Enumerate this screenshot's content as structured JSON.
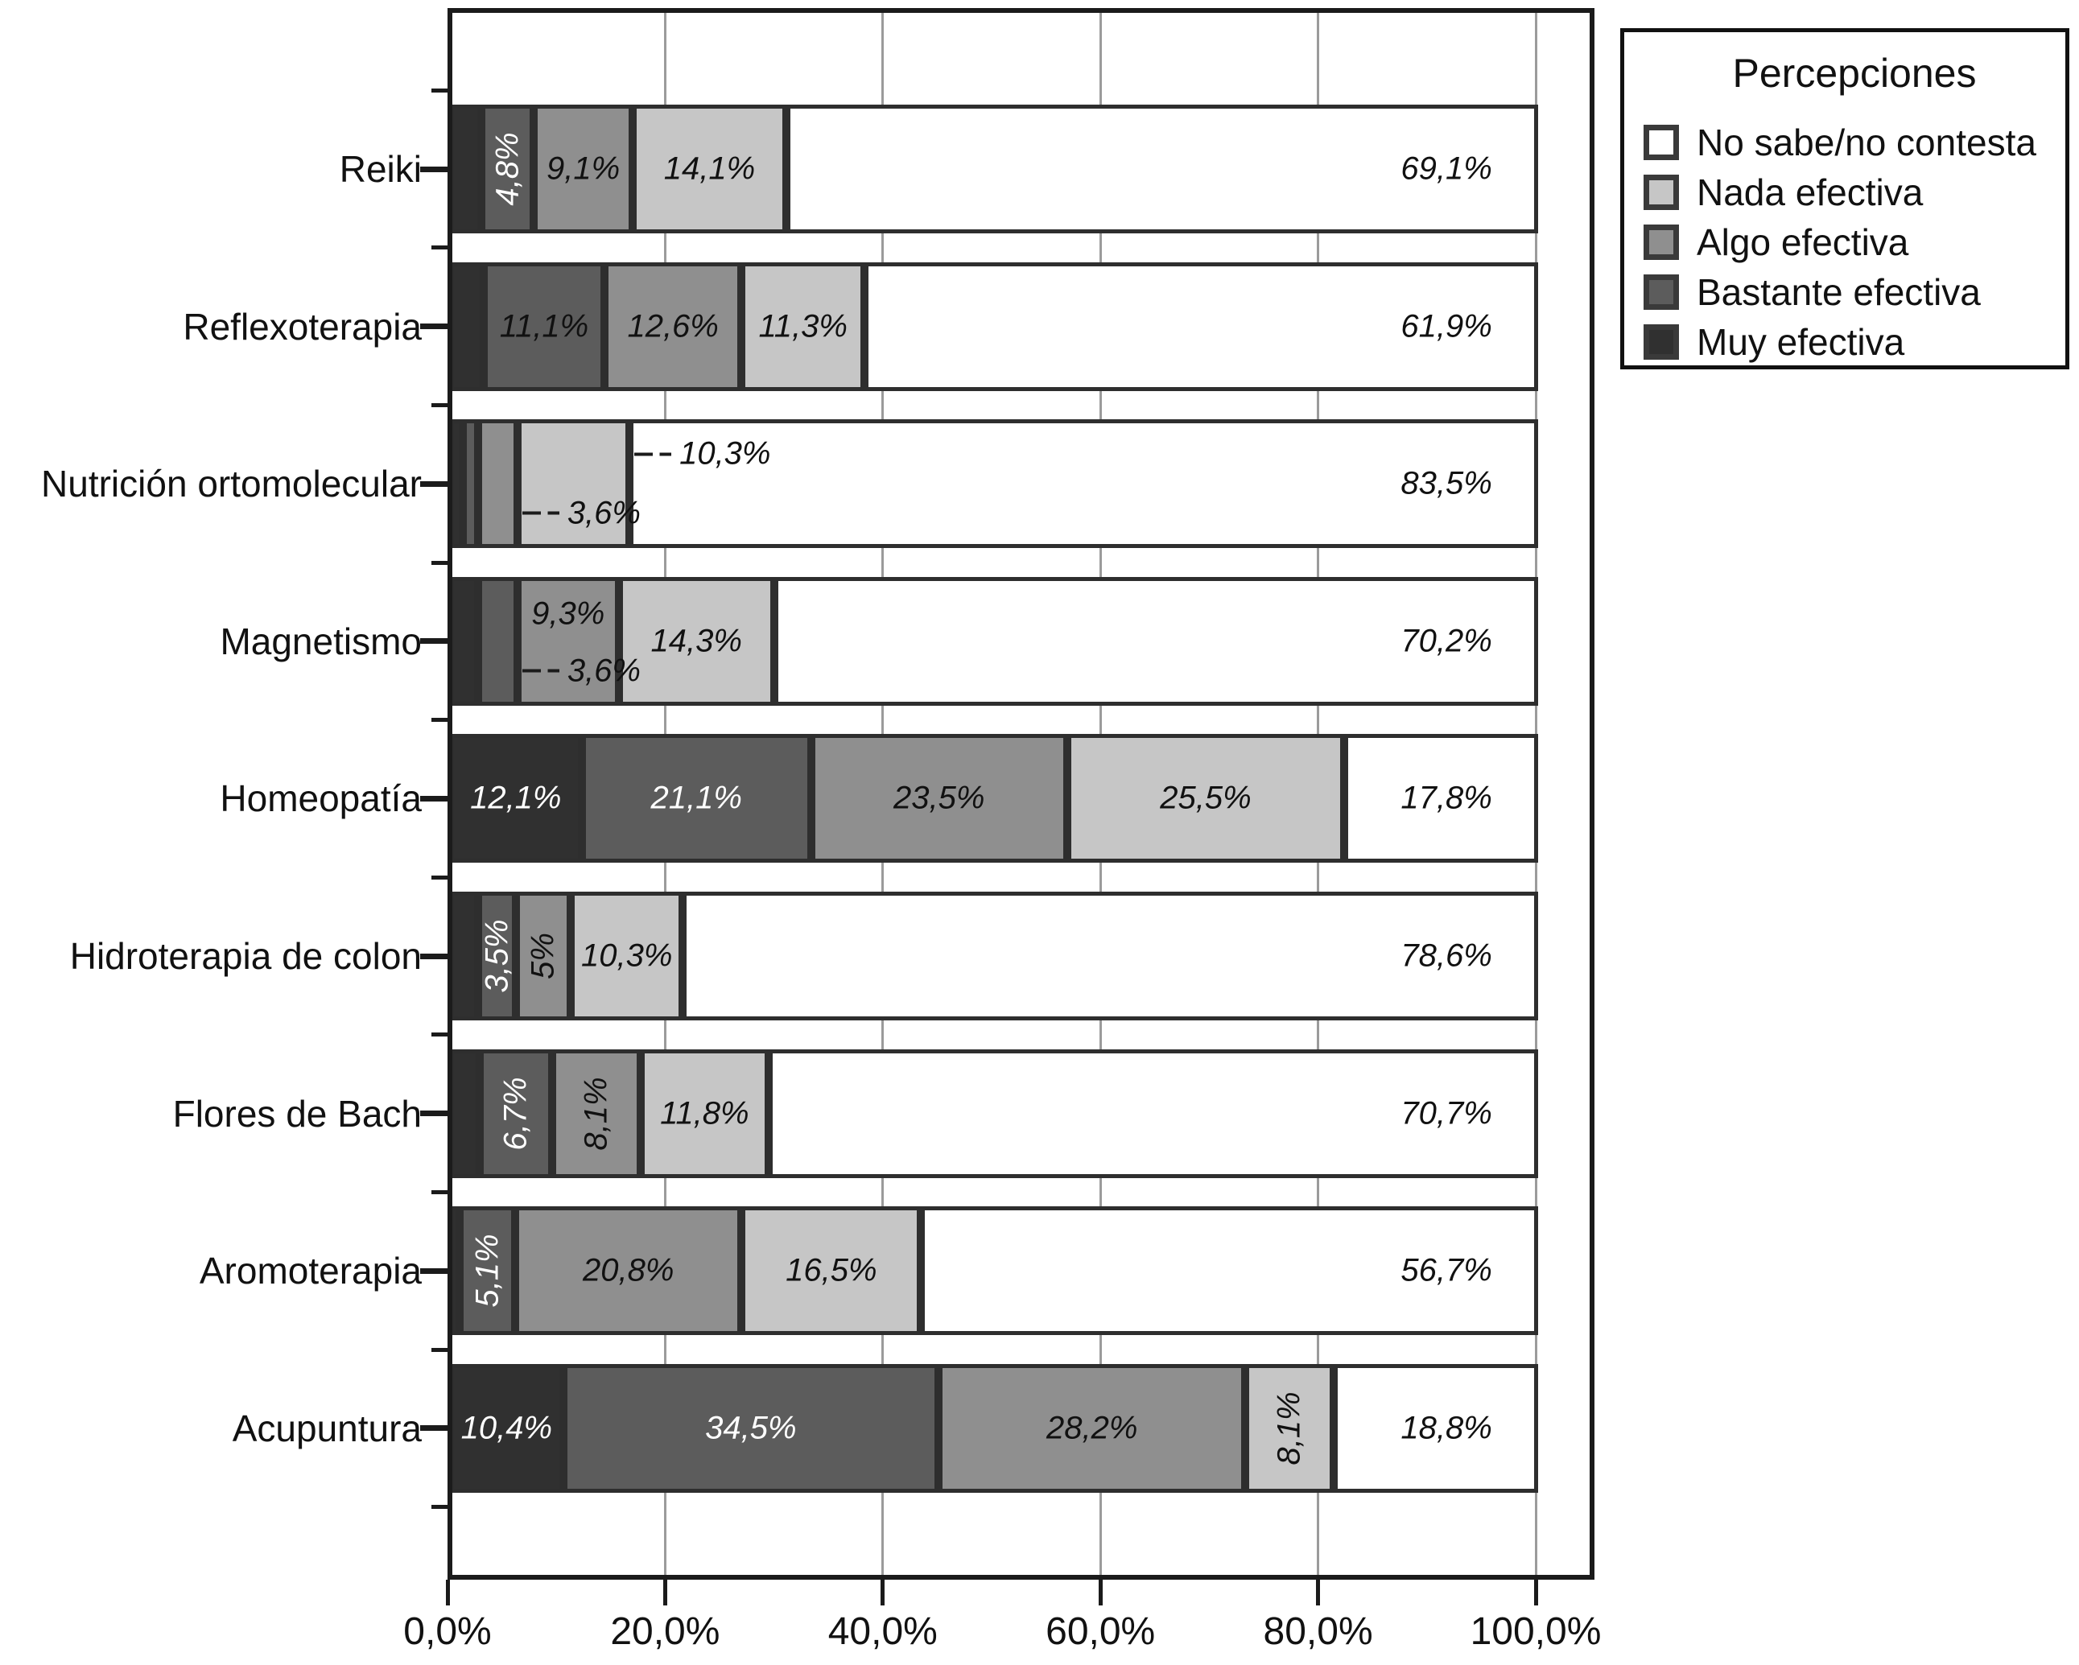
{
  "chart_data": {
    "type": "bar",
    "orientation": "horizontal",
    "stacked": true,
    "units": "percent",
    "x_axis": {
      "range_pct": [
        0,
        100
      ],
      "grid": true,
      "ticks": [
        {
          "pct": 0,
          "label": "0,0%"
        },
        {
          "pct": 20,
          "label": "20,0%"
        },
        {
          "pct": 40,
          "label": "40,0%"
        },
        {
          "pct": 60,
          "label": "60,0%"
        },
        {
          "pct": 80,
          "label": "80,0%"
        },
        {
          "pct": 100,
          "label": "100,0%"
        }
      ]
    },
    "legend": {
      "title": "Percepciones",
      "position": "top-right",
      "items": [
        {
          "label": "No sabe/no contesta",
          "color": "#ffffff"
        },
        {
          "label": "Nada efectiva",
          "color": "#c6c6c6"
        },
        {
          "label": "Algo efectiva",
          "color": "#8f8f8f"
        },
        {
          "label": "Bastante efectiva",
          "color": "#5c5c5c"
        },
        {
          "label": "Muy efectiva",
          "color": "#303030"
        }
      ]
    },
    "series_colors": {
      "Muy efectiva": "#303030",
      "Bastante efectiva": "#5c5c5c",
      "Algo efectiva": "#8f8f8f",
      "Nada efectiva": "#c6c6c6",
      "No sabe/no contesta": "#ffffff"
    },
    "categories": [
      {
        "label": "Reiki",
        "segments": [
          {
            "series": "Muy efectiva",
            "value": 2.9,
            "label": null
          },
          {
            "series": "Bastante efectiva",
            "value": 4.8,
            "label": "4,8%",
            "mode": "v",
            "light": true
          },
          {
            "series": "Algo efectiva",
            "value": 9.1,
            "label": "9,1%",
            "mode": "h"
          },
          {
            "series": "Nada efectiva",
            "value": 14.1,
            "label": "14,1%",
            "mode": "h"
          },
          {
            "series": "No sabe/no contesta",
            "value": 69.1,
            "label": "69,1%",
            "mode": "ns"
          }
        ]
      },
      {
        "label": "Reflexoterapia",
        "segments": [
          {
            "series": "Muy efectiva",
            "value": 3.1,
            "label": null
          },
          {
            "series": "Bastante efectiva",
            "value": 11.1,
            "label": "11,1%",
            "mode": "h"
          },
          {
            "series": "Algo efectiva",
            "value": 12.6,
            "label": "12,6%",
            "mode": "h"
          },
          {
            "series": "Nada efectiva",
            "value": 11.3,
            "label": "11,3%",
            "mode": "h"
          },
          {
            "series": "No sabe/no contesta",
            "value": 61.9,
            "label": "61,9%",
            "mode": "ns"
          }
        ]
      },
      {
        "label": "Nutrición ortomolecular",
        "segments": [
          {
            "series": "Muy efectiva",
            "value": 1.2,
            "label": null
          },
          {
            "series": "Bastante efectiva",
            "value": 1.4,
            "label": null
          },
          {
            "series": "Algo efectiva",
            "value": 3.6,
            "label": "3,6%",
            "mode": "ext-lower"
          },
          {
            "series": "Nada efectiva",
            "value": 10.3,
            "label": "10,3%",
            "mode": "ext-upper"
          },
          {
            "series": "No sabe/no contesta",
            "value": 83.5,
            "label": "83,5%",
            "mode": "ns"
          }
        ]
      },
      {
        "label": "Magnetismo",
        "segments": [
          {
            "series": "Muy efectiva",
            "value": 2.6,
            "label": null
          },
          {
            "series": "Bastante efectiva",
            "value": 3.6,
            "label": "3,6%",
            "mode": "ext-lower"
          },
          {
            "series": "Algo efectiva",
            "value": 9.3,
            "label": "9,3%",
            "mode": "upper"
          },
          {
            "series": "Nada efectiva",
            "value": 14.3,
            "label": "14,3%",
            "mode": "h"
          },
          {
            "series": "No sabe/no contesta",
            "value": 70.2,
            "label": "70,2%",
            "mode": "ns"
          }
        ]
      },
      {
        "label": "Homeopatía",
        "segments": [
          {
            "series": "Muy efectiva",
            "value": 12.1,
            "label": "12,1%",
            "mode": "h",
            "light": true
          },
          {
            "series": "Bastante efectiva",
            "value": 21.1,
            "label": "21,1%",
            "mode": "h",
            "light": true
          },
          {
            "series": "Algo efectiva",
            "value": 23.5,
            "label": "23,5%",
            "mode": "h"
          },
          {
            "series": "Nada efectiva",
            "value": 25.5,
            "label": "25,5%",
            "mode": "h"
          },
          {
            "series": "No sabe/no contesta",
            "value": 17.8,
            "label": "17,8%",
            "mode": "ns"
          }
        ]
      },
      {
        "label": "Hidroterapia de colon",
        "segments": [
          {
            "series": "Muy efectiva",
            "value": 2.6,
            "label": null
          },
          {
            "series": "Bastante efectiva",
            "value": 3.5,
            "label": "3,5%",
            "mode": "v",
            "light": true
          },
          {
            "series": "Algo efectiva",
            "value": 5.0,
            "label": "5%",
            "mode": "v"
          },
          {
            "series": "Nada efectiva",
            "value": 10.3,
            "label": "10,3%",
            "mode": "h"
          },
          {
            "series": "No sabe/no contesta",
            "value": 78.6,
            "label": "78,6%",
            "mode": "ns"
          }
        ]
      },
      {
        "label": "Flores de Bach",
        "segments": [
          {
            "series": "Muy efectiva",
            "value": 2.7,
            "label": null
          },
          {
            "series": "Bastante efectiva",
            "value": 6.7,
            "label": "6,7%",
            "mode": "v",
            "light": true
          },
          {
            "series": "Algo efectiva",
            "value": 8.1,
            "label": "8,1%",
            "mode": "v"
          },
          {
            "series": "Nada efectiva",
            "value": 11.8,
            "label": "11,8%",
            "mode": "h"
          },
          {
            "series": "No sabe/no contesta",
            "value": 70.7,
            "label": "70,7%",
            "mode": "ns"
          }
        ]
      },
      {
        "label": "Aromoterapia",
        "segments": [
          {
            "series": "Muy efectiva",
            "value": 0.9,
            "label": null
          },
          {
            "series": "Bastante efectiva",
            "value": 5.1,
            "label": "5,1%",
            "mode": "v",
            "light": true
          },
          {
            "series": "Algo efectiva",
            "value": 20.8,
            "label": "20,8%",
            "mode": "h"
          },
          {
            "series": "Nada efectiva",
            "value": 16.5,
            "label": "16,5%",
            "mode": "h"
          },
          {
            "series": "No sabe/no contesta",
            "value": 56.7,
            "label": "56,7%",
            "mode": "ns"
          }
        ]
      },
      {
        "label": "Acupuntura",
        "segments": [
          {
            "series": "Muy efectiva",
            "value": 10.4,
            "label": "10,4%",
            "mode": "h",
            "light": true
          },
          {
            "series": "Bastante efectiva",
            "value": 34.5,
            "label": "34,5%",
            "mode": "h",
            "light": true
          },
          {
            "series": "Algo efectiva",
            "value": 28.2,
            "label": "28,2%",
            "mode": "h"
          },
          {
            "series": "Nada efectiva",
            "value": 8.1,
            "label": "8,1%",
            "mode": "v"
          },
          {
            "series": "No sabe/no contesta",
            "value": 18.8,
            "label": "18,8%",
            "mode": "ns"
          }
        ]
      }
    ]
  }
}
